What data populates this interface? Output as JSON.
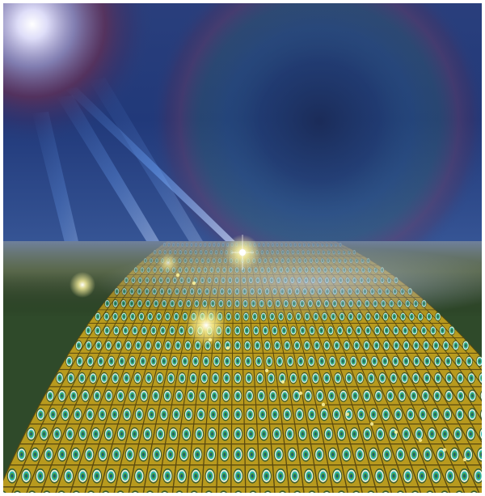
{
  "scene": {
    "sky_top": "#1f3570",
    "sky_bottom": "#2a4a8a",
    "sun_glow": "#f4f2ff",
    "sun_halo": "#7a2a46",
    "lens_ring": "#5a2a5a",
    "beam_color": "#7ab0ff",
    "tile_gold": "#b89a1e",
    "tile_dark": "#2f4a2a",
    "ring_outer": "#e9f0d6",
    "ring_cyan": "#2ab5b8",
    "ring_green": "#4a9a3a",
    "ring_core": "#1a5a7a",
    "highlight": "#fff6a0"
  }
}
